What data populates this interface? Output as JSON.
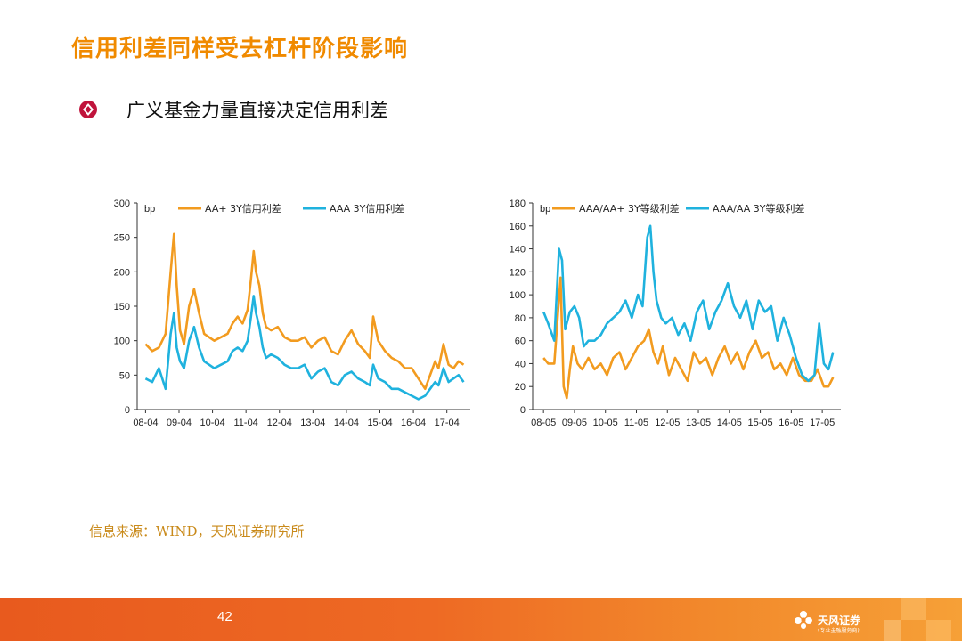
{
  "page": {
    "title": "信用利差同样受去杠杆阶段影响",
    "bullet": "广义基金力量直接决定信用利差",
    "source": "信息来源：WIND，天风证券研究所",
    "page_number": "42",
    "logo_text": "天风证券",
    "logo_subtext": "(专业金融服务商)"
  },
  "colors": {
    "orange": "#f29b1f",
    "blue": "#1fb2de",
    "title": "#f08a00",
    "bullet": "#c0143c"
  },
  "chart_data": [
    {
      "type": "line",
      "unit_label": "bp",
      "ylim": [
        0,
        300
      ],
      "yticks": [
        "0",
        "50",
        "100",
        "150",
        "200",
        "250",
        "300"
      ],
      "xticks": [
        "08-04",
        "09-04",
        "10-04",
        "11-04",
        "12-04",
        "13-04",
        "14-04",
        "15-04",
        "16-04",
        "17-04"
      ],
      "series": [
        {
          "name": "AA+ 3Y信用利差",
          "color": "#f29b1f",
          "x": [
            2008.25,
            2008.45,
            2008.65,
            2008.85,
            2009.0,
            2009.1,
            2009.18,
            2009.28,
            2009.4,
            2009.55,
            2009.7,
            2009.85,
            2010.0,
            2010.15,
            2010.3,
            2010.5,
            2010.7,
            2010.85,
            2011.0,
            2011.15,
            2011.3,
            2011.4,
            2011.48,
            2011.55,
            2011.65,
            2011.75,
            2011.85,
            2012.0,
            2012.2,
            2012.4,
            2012.6,
            2012.8,
            2013.0,
            2013.2,
            2013.4,
            2013.6,
            2013.8,
            2014.0,
            2014.2,
            2014.4,
            2014.6,
            2014.8,
            2014.95,
            2015.05,
            2015.2,
            2015.4,
            2015.6,
            2015.8,
            2016.0,
            2016.2,
            2016.4,
            2016.6,
            2016.75,
            2016.9,
            2017.0,
            2017.15,
            2017.3,
            2017.45,
            2017.6,
            2017.75
          ],
          "values": [
            95,
            85,
            90,
            110,
            200,
            255,
            180,
            115,
            95,
            150,
            175,
            140,
            110,
            105,
            100,
            105,
            110,
            125,
            135,
            125,
            145,
            190,
            230,
            200,
            180,
            140,
            120,
            115,
            120,
            105,
            100,
            100,
            105,
            90,
            100,
            105,
            85,
            80,
            100,
            115,
            95,
            85,
            75,
            135,
            100,
            85,
            75,
            70,
            60,
            60,
            45,
            30,
            50,
            70,
            60,
            95,
            65,
            60,
            70,
            65
          ]
        },
        {
          "name": "AAA 3Y信用利差",
          "color": "#1fb2de",
          "x": [
            2008.25,
            2008.45,
            2008.65,
            2008.85,
            2009.0,
            2009.1,
            2009.18,
            2009.28,
            2009.4,
            2009.55,
            2009.7,
            2009.85,
            2010.0,
            2010.15,
            2010.3,
            2010.5,
            2010.7,
            2010.85,
            2011.0,
            2011.15,
            2011.3,
            2011.4,
            2011.48,
            2011.55,
            2011.65,
            2011.75,
            2011.85,
            2012.0,
            2012.2,
            2012.4,
            2012.6,
            2012.8,
            2013.0,
            2013.2,
            2013.4,
            2013.6,
            2013.8,
            2014.0,
            2014.2,
            2014.4,
            2014.6,
            2014.8,
            2014.95,
            2015.05,
            2015.2,
            2015.4,
            2015.6,
            2015.8,
            2016.0,
            2016.2,
            2016.4,
            2016.6,
            2016.75,
            2016.9,
            2017.0,
            2017.15,
            2017.3,
            2017.45,
            2017.6,
            2017.75
          ],
          "values": [
            45,
            40,
            60,
            30,
            110,
            140,
            90,
            70,
            60,
            100,
            120,
            90,
            70,
            65,
            60,
            65,
            70,
            85,
            90,
            85,
            100,
            135,
            165,
            140,
            120,
            90,
            75,
            80,
            75,
            65,
            60,
            60,
            65,
            45,
            55,
            60,
            40,
            35,
            50,
            55,
            45,
            40,
            35,
            65,
            45,
            40,
            30,
            30,
            25,
            20,
            15,
            20,
            30,
            40,
            35,
            60,
            40,
            45,
            50,
            40
          ]
        }
      ]
    },
    {
      "type": "line",
      "unit_label": "bp",
      "ylim": [
        0,
        180
      ],
      "yticks": [
        "0",
        "20",
        "40",
        "60",
        "80",
        "100",
        "120",
        "140",
        "160",
        "180"
      ],
      "xticks": [
        "08-05",
        "09-05",
        "10-05",
        "11-05",
        "12-05",
        "13-05",
        "14-05",
        "15-05",
        "16-05",
        "17-05"
      ],
      "series": [
        {
          "name": "AAA/AA+ 3Y等级利差",
          "color": "#f29b1f",
          "x": [
            2008.35,
            2008.5,
            2008.7,
            2008.9,
            2009.0,
            2009.1,
            2009.2,
            2009.3,
            2009.45,
            2009.6,
            2009.8,
            2010.0,
            2010.2,
            2010.4,
            2010.6,
            2010.8,
            2011.0,
            2011.2,
            2011.4,
            2011.6,
            2011.75,
            2011.9,
            2012.05,
            2012.2,
            2012.4,
            2012.6,
            2012.8,
            2013.0,
            2013.2,
            2013.4,
            2013.6,
            2013.8,
            2014.0,
            2014.2,
            2014.4,
            2014.6,
            2014.8,
            2015.0,
            2015.2,
            2015.4,
            2015.6,
            2015.8,
            2016.0,
            2016.2,
            2016.4,
            2016.6,
            2016.8,
            2017.0,
            2017.2,
            2017.4,
            2017.55,
            2017.7
          ],
          "values": [
            45,
            40,
            40,
            115,
            20,
            10,
            35,
            55,
            40,
            35,
            45,
            35,
            40,
            30,
            45,
            50,
            35,
            45,
            55,
            60,
            70,
            50,
            40,
            55,
            30,
            45,
            35,
            25,
            50,
            40,
            45,
            30,
            45,
            55,
            40,
            50,
            35,
            50,
            60,
            45,
            50,
            35,
            40,
            30,
            45,
            30,
            25,
            25,
            35,
            20,
            20,
            28
          ]
        },
        {
          "name": "AAA/AA 3Y等级利差",
          "color": "#1fb2de",
          "x": [
            2008.35,
            2008.5,
            2008.7,
            2008.85,
            2008.95,
            2009.05,
            2009.2,
            2009.35,
            2009.5,
            2009.65,
            2009.8,
            2010.0,
            2010.2,
            2010.4,
            2010.6,
            2010.8,
            2011.0,
            2011.2,
            2011.4,
            2011.55,
            2011.7,
            2011.8,
            2011.9,
            2012.0,
            2012.15,
            2012.3,
            2012.5,
            2012.7,
            2012.9,
            2013.1,
            2013.3,
            2013.5,
            2013.7,
            2013.9,
            2014.1,
            2014.3,
            2014.5,
            2014.7,
            2014.9,
            2015.1,
            2015.3,
            2015.5,
            2015.7,
            2015.9,
            2016.1,
            2016.3,
            2016.5,
            2016.7,
            2016.9,
            2017.1,
            2017.25,
            2017.4,
            2017.55,
            2017.7
          ],
          "values": [
            85,
            75,
            60,
            140,
            130,
            70,
            85,
            90,
            80,
            55,
            60,
            60,
            65,
            75,
            80,
            85,
            95,
            80,
            100,
            90,
            150,
            160,
            120,
            95,
            80,
            75,
            80,
            65,
            75,
            60,
            85,
            95,
            70,
            85,
            95,
            110,
            90,
            80,
            95,
            70,
            95,
            85,
            90,
            60,
            80,
            65,
            45,
            30,
            25,
            30,
            75,
            40,
            35,
            50
          ]
        }
      ]
    }
  ]
}
